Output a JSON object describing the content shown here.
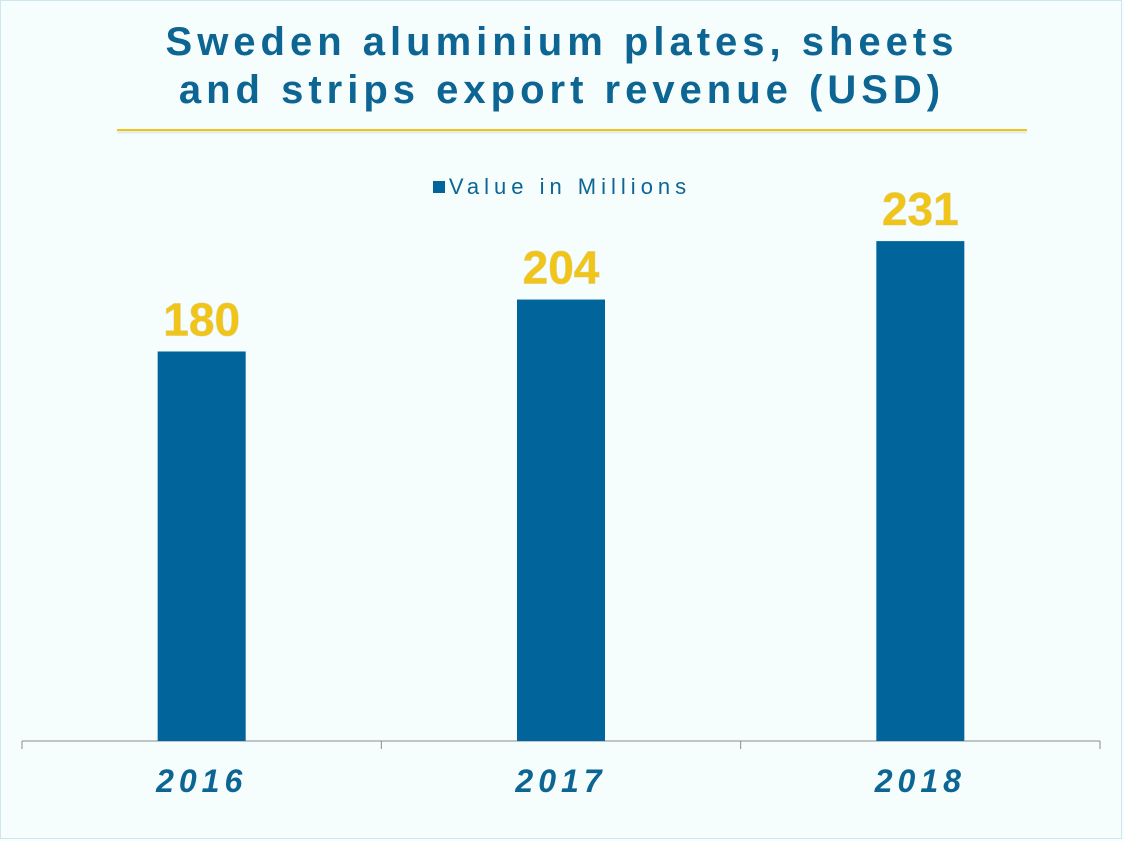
{
  "title_lines": [
    "Sweden aluminium plates, sheets",
    "and strips export revenue (USD)"
  ],
  "colors": {
    "bar": "#01649a",
    "value_label": "#f1c419",
    "text": "#0c6592",
    "rule": "#f1c419",
    "background": "#f5fdfd"
  },
  "chart_data": {
    "type": "bar",
    "title": "Sweden aluminium plates, sheets and strips export revenue (USD)",
    "categories": [
      "2016",
      "2017",
      "2018"
    ],
    "series": [
      {
        "name": "Value in Millions",
        "values": [
          180,
          204,
          231
        ]
      }
    ],
    "data_labels": [
      "180",
      "204",
      "231"
    ],
    "legend_position": "top",
    "grid": false,
    "ylim": [
      0,
      250
    ]
  }
}
